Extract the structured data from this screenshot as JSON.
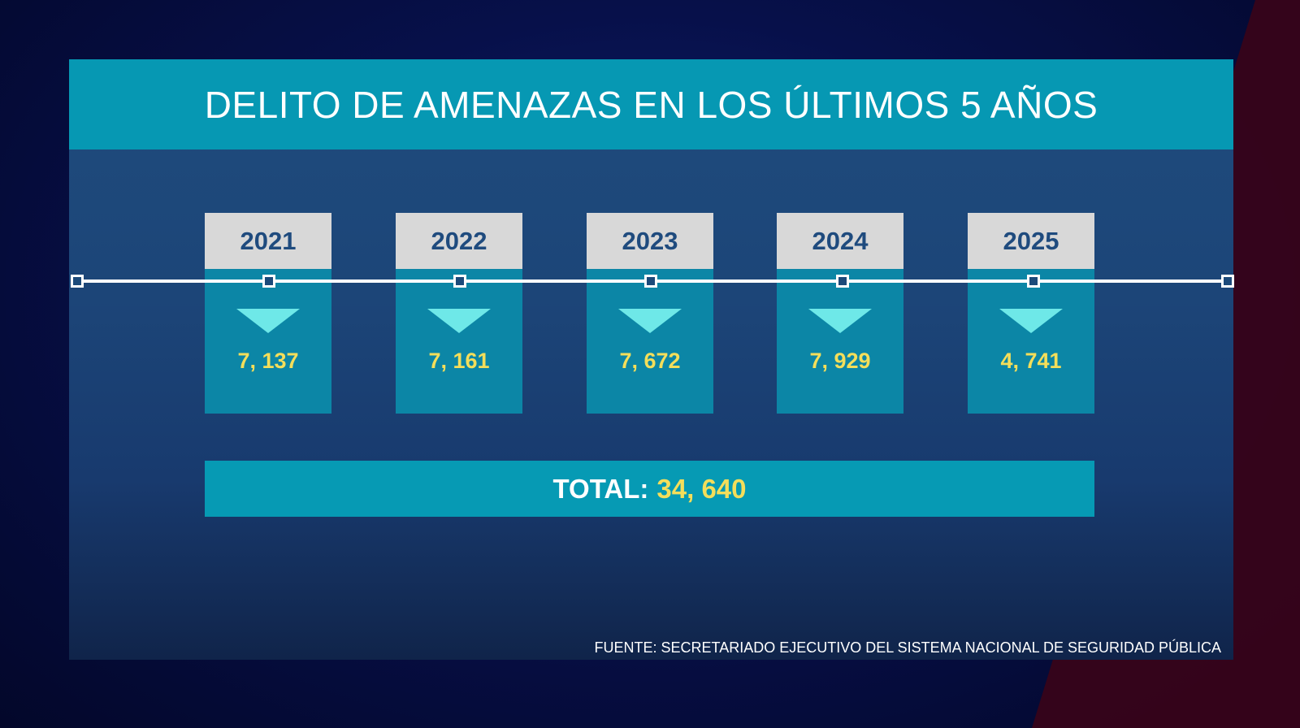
{
  "chart_data": {
    "type": "table",
    "title": "DELITO DE AMENAZAS EN LOS ÚLTIMOS 5 AÑOS",
    "categories": [
      "2021",
      "2022",
      "2023",
      "2024",
      "2025"
    ],
    "values": [
      7137,
      7161,
      7672,
      7929,
      4741
    ],
    "value_labels": [
      "7, 137",
      "7, 161",
      "7, 672",
      "7, 929",
      "4, 741"
    ],
    "total_label": "TOTAL:",
    "total_value": "34, 640",
    "source": "FUENTE: SECRETARIADO EJECUTIVO DEL SISTEMA NACIONAL DE SEGURIDAD PÚBLICA"
  },
  "colors": {
    "title_bar": "#0698b3",
    "card_head": "#d8d8d8",
    "card_body": "#0c86a6",
    "value_text": "#f4de5a",
    "triangle": "#6ee8e8"
  }
}
